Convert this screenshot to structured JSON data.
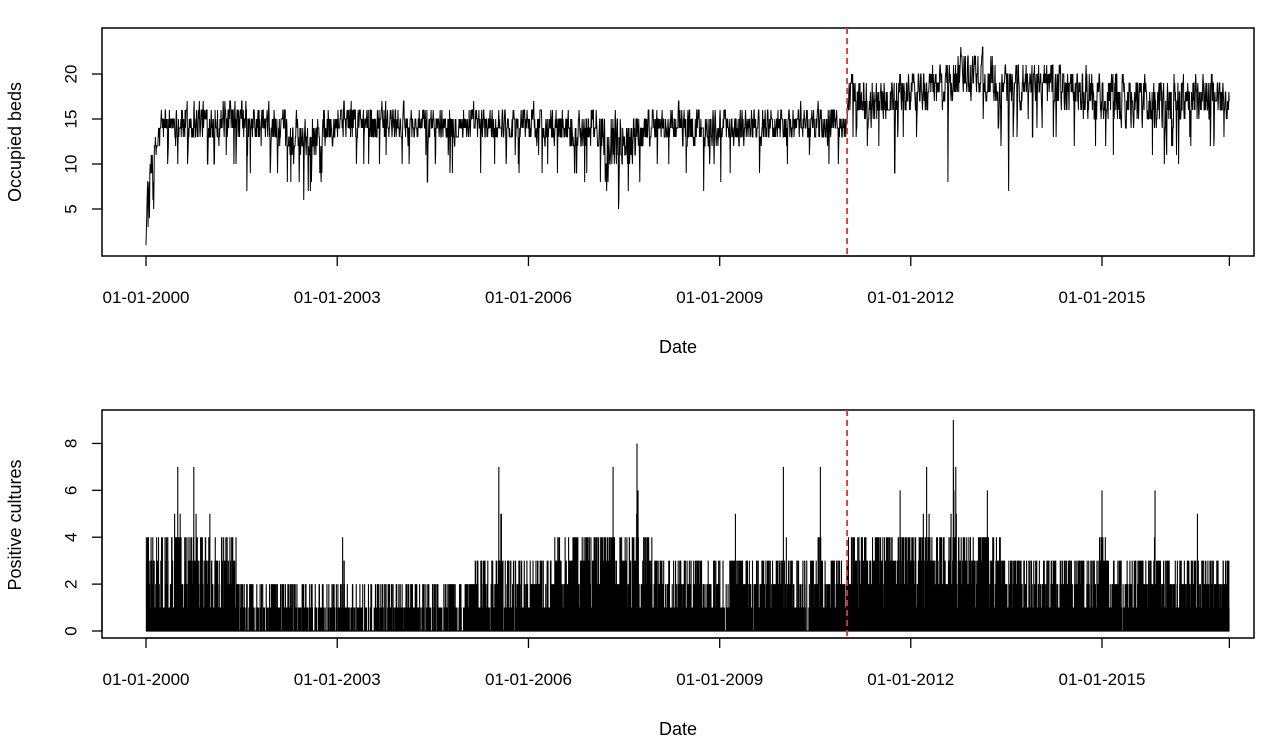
{
  "chart_data": [
    {
      "type": "line",
      "xlabel": "Date",
      "ylabel": "Occupied beds",
      "x_range": [
        "2000-01-01",
        "2016-12-31"
      ],
      "ylim": [
        1,
        24
      ],
      "y_ticks": [
        5,
        10,
        15,
        20
      ],
      "x_ticks": [
        "01-01-2000",
        "01-01-2003",
        "01-01-2006",
        "01-01-2009",
        "01-01-2012",
        "01-01-2015"
      ],
      "grid": false,
      "legend": "none",
      "line_color": "#000000",
      "reference_line": {
        "x": "2011-01-01",
        "color": "#e8312f",
        "style": "dashed"
      },
      "series": [
        {
          "sampling": "approximate daily series",
          "x": [
            "2000-01-01",
            "2000-01-10",
            "2000-02-01",
            "2000-03-01",
            "2000-04-01",
            "2000-06-01",
            "2001-01-01",
            "2002-01-01",
            "2002-06-01",
            "2003-01-01",
            "2004-01-01",
            "2005-01-01",
            "2006-01-01",
            "2007-01-01",
            "2007-06-01",
            "2008-01-01",
            "2009-01-01",
            "2010-01-01",
            "2010-12-31",
            "2011-01-15",
            "2011-06-01",
            "2012-01-01",
            "2012-06-01",
            "2013-01-01",
            "2013-06-01",
            "2014-01-01",
            "2014-06-01",
            "2015-01-01",
            "2015-06-01",
            "2016-01-01",
            "2016-06-01",
            "2016-12-31"
          ],
          "y": [
            1,
            8,
            10,
            12,
            15,
            15,
            15,
            14,
            13,
            15,
            15,
            15,
            15,
            14,
            14,
            15,
            14,
            15,
            15,
            18,
            17,
            18,
            19,
            21,
            19,
            19,
            19,
            18,
            17,
            17,
            18,
            17
          ],
          "band_low": [
            1,
            5,
            7,
            9,
            12,
            12,
            12,
            11,
            9,
            12,
            12,
            12,
            12,
            11,
            8,
            12,
            11,
            12,
            12,
            15,
            13,
            15,
            15,
            17,
            15,
            16,
            15,
            14,
            13,
            13,
            14,
            14
          ],
          "band_high": [
            1,
            10,
            13,
            15,
            17,
            17,
            18,
            17,
            16,
            18,
            17,
            17,
            17,
            17,
            17,
            17,
            17,
            17,
            17,
            21,
            20,
            21,
            22,
            24,
            22,
            22,
            22,
            21,
            21,
            21,
            21,
            20
          ],
          "dips": [
            {
              "x": "2007-06-01",
              "y": 5
            },
            {
              "x": "2001-08-01",
              "y": 7
            },
            {
              "x": "2008-10-01",
              "y": 7
            },
            {
              "x": "2013-07-15",
              "y": 7
            },
            {
              "x": "2011-10-01",
              "y": 9
            },
            {
              "x": "2012-08-01",
              "y": 8
            },
            {
              "x": "2002-10-01",
              "y": 8
            },
            {
              "x": "2004-06-01",
              "y": 8
            },
            {
              "x": "2016-03-15",
              "y": 10
            }
          ]
        }
      ]
    },
    {
      "type": "bar",
      "xlabel": "Date",
      "ylabel": "Positive cultures",
      "x_range": [
        "2000-01-01",
        "2016-12-31"
      ],
      "ylim": [
        0,
        9
      ],
      "y_ticks": [
        0,
        2,
        4,
        6,
        8
      ],
      "x_ticks": [
        "01-01-2000",
        "01-01-2003",
        "01-01-2006",
        "01-01-2009",
        "01-01-2012",
        "01-01-2015"
      ],
      "grid": false,
      "legend": "none",
      "bar_color": "#000000",
      "reference_line": {
        "x": "2011-01-01",
        "color": "#e8312f",
        "style": "dashed"
      },
      "series": [
        {
          "sampling": "approximate daily counts",
          "density_periods": [
            {
              "from": "2000-01-01",
              "to": "2001-06-01",
              "typical_max": 3,
              "activity": 0.65
            },
            {
              "from": "2001-06-01",
              "to": "2003-01-01",
              "typical_max": 1,
              "activity": 0.35
            },
            {
              "from": "2003-01-01",
              "to": "2005-01-01",
              "typical_max": 1,
              "activity": 0.3
            },
            {
              "from": "2005-01-01",
              "to": "2006-06-01",
              "typical_max": 2,
              "activity": 0.55
            },
            {
              "from": "2006-06-01",
              "to": "2008-01-01",
              "typical_max": 3,
              "activity": 0.75
            },
            {
              "from": "2008-01-01",
              "to": "2011-01-01",
              "typical_max": 2,
              "activity": 0.6
            },
            {
              "from": "2011-01-01",
              "to": "2013-06-01",
              "typical_max": 3,
              "activity": 0.8
            },
            {
              "from": "2013-06-01",
              "to": "2016-12-31",
              "typical_max": 2,
              "activity": 0.7
            }
          ],
          "peaks": [
            {
              "x": "2000-07-01",
              "y": 7
            },
            {
              "x": "2000-10-01",
              "y": 7
            },
            {
              "x": "2001-01-01",
              "y": 5
            },
            {
              "x": "2003-02-01",
              "y": 4
            },
            {
              "x": "2005-07-15",
              "y": 7
            },
            {
              "x": "2006-06-01",
              "y": 4
            },
            {
              "x": "2007-05-01",
              "y": 7
            },
            {
              "x": "2007-09-15",
              "y": 8
            },
            {
              "x": "2009-04-01",
              "y": 5
            },
            {
              "x": "2010-01-01",
              "y": 7
            },
            {
              "x": "2010-08-01",
              "y": 7
            },
            {
              "x": "2011-11-01",
              "y": 6
            },
            {
              "x": "2012-04-01",
              "y": 7
            },
            {
              "x": "2012-09-01",
              "y": 9
            },
            {
              "x": "2013-03-15",
              "y": 6
            },
            {
              "x": "2015-01-01",
              "y": 6
            },
            {
              "x": "2015-11-01",
              "y": 6
            },
            {
              "x": "2016-07-01",
              "y": 5
            }
          ]
        }
      ]
    }
  ]
}
